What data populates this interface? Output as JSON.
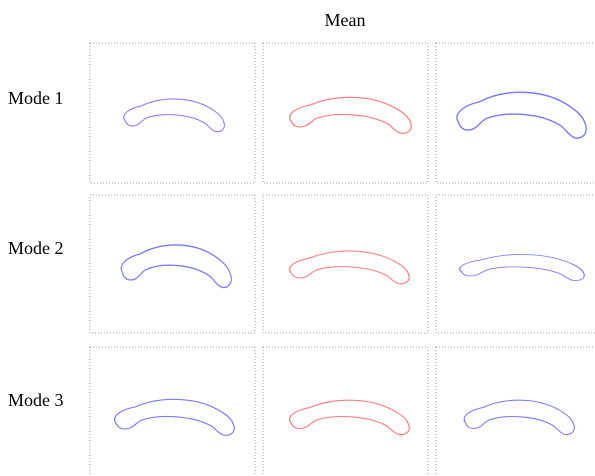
{
  "header": {
    "title": "Mean"
  },
  "rows": [
    {
      "label": "Mode 1"
    },
    {
      "label": "Mode 2"
    },
    {
      "label": "Mode 3"
    }
  ]
}
